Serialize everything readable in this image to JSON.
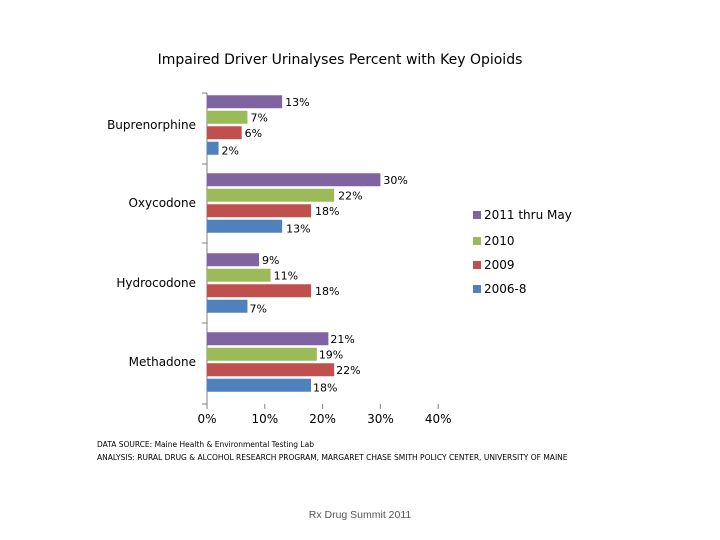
{
  "chart_data": {
    "type": "bar",
    "orientation": "horizontal",
    "title": "Impaired Driver Urinalyses Percent with Key Opioids",
    "categories": [
      "Buprenorphine",
      "Oxycodone",
      "Hydrocodone",
      "Methadone"
    ],
    "series": [
      {
        "name": "2011 thru May",
        "color": "#8064A2",
        "values": [
          13,
          30,
          9,
          21
        ],
        "labels": [
          "13%",
          "30%",
          "9%",
          "21%"
        ]
      },
      {
        "name": "2010",
        "color": "#9BBB59",
        "values": [
          7,
          22,
          11,
          19
        ],
        "labels": [
          "7%",
          "22%",
          "11%",
          "19%"
        ]
      },
      {
        "name": "2009",
        "color": "#C0504D",
        "values": [
          6,
          18,
          18,
          22
        ],
        "labels": [
          "6%",
          "18%",
          "18%",
          "22%"
        ]
      },
      {
        "name": "2006-8",
        "color": "#4F81BD",
        "values": [
          2,
          13,
          7,
          18
        ],
        "labels": [
          "2%",
          "13%",
          "7%",
          "18%"
        ]
      }
    ],
    "xlim": [
      0,
      40
    ],
    "xticks": [
      "0%",
      "10%",
      "20%",
      "30%",
      "40%"
    ],
    "xlabel": "",
    "ylabel": "",
    "legend": "right",
    "grid": false
  },
  "source_line": "DATA SOURCE: Maine Health & Environmental Testing Lab",
  "analysis_line": "ANALYSIS: RURAL DRUG & ALCOHOL RESEARCH PROGRAM, MARGARET CHASE SMITH POLICY CENTER, UNIVERSITY OF MAINE",
  "footer": "Rx Drug Summit 2011"
}
